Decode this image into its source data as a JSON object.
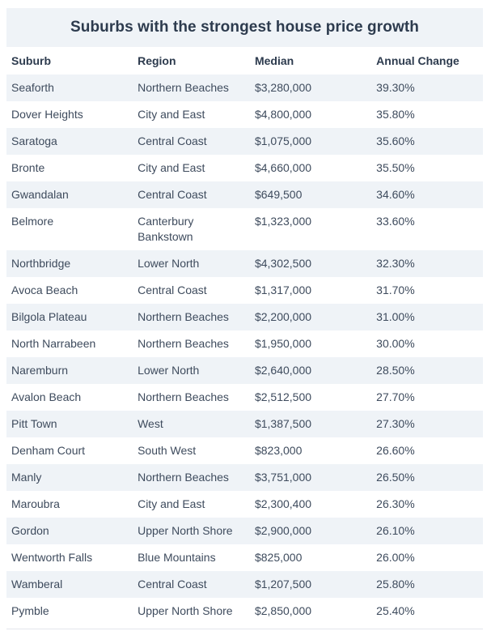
{
  "title": "Suburbs with the strongest house price growth",
  "colors": {
    "stripe_background": "#eff3f7",
    "title_text": "#2d3b4e",
    "header_text": "#2d3b4e",
    "cell_text": "#3e4b5d",
    "bottom_rule": "#e3e6ec",
    "page_background": "#ffffff"
  },
  "chart_data": {
    "type": "table",
    "title": "Suburbs with the strongest house price growth",
    "columns": [
      "Suburb",
      "Region",
      "Median",
      "Annual Change"
    ],
    "rows": [
      [
        "Seaforth",
        "Northern Beaches",
        "$3,280,000",
        "39.30%"
      ],
      [
        "Dover Heights",
        "City and East",
        "$4,800,000",
        "35.80%"
      ],
      [
        "Saratoga",
        "Central Coast",
        "$1,075,000",
        "35.60%"
      ],
      [
        "Bronte",
        "City and East",
        "$4,660,000",
        "35.50%"
      ],
      [
        "Gwandalan",
        "Central Coast",
        "$649,500",
        "34.60%"
      ],
      [
        "Belmore",
        "Canterbury Bankstown",
        "$1,323,000",
        "33.60%"
      ],
      [
        "Northbridge",
        "Lower North",
        "$4,302,500",
        "32.30%"
      ],
      [
        "Avoca Beach",
        "Central Coast",
        "$1,317,000",
        "31.70%"
      ],
      [
        "Bilgola Plateau",
        "Northern Beaches",
        "$2,200,000",
        "31.00%"
      ],
      [
        "North Narrabeen",
        "Northern Beaches",
        "$1,950,000",
        "30.00%"
      ],
      [
        "Naremburn",
        "Lower North",
        "$2,640,000",
        "28.50%"
      ],
      [
        "Avalon Beach",
        "Northern Beaches",
        "$2,512,500",
        "27.70%"
      ],
      [
        "Pitt Town",
        "West",
        "$1,387,500",
        "27.30%"
      ],
      [
        "Denham Court",
        "South West",
        "$823,000",
        "26.60%"
      ],
      [
        "Manly",
        "Northern Beaches",
        "$3,751,000",
        "26.50%"
      ],
      [
        "Maroubra",
        "City and East",
        "$2,300,400",
        "26.30%"
      ],
      [
        "Gordon",
        "Upper North Shore",
        "$2,900,000",
        "26.10%"
      ],
      [
        "Wentworth Falls",
        "Blue Mountains",
        "$825,000",
        "26.00%"
      ],
      [
        "Wamberal",
        "Central Coast",
        "$1,207,500",
        "25.80%"
      ],
      [
        "Pymble",
        "Upper North Shore",
        "$2,850,000",
        "25.40%"
      ]
    ],
    "annual_change_values_pct": [
      39.3,
      35.8,
      35.6,
      35.5,
      34.6,
      33.6,
      32.3,
      31.7,
      31.0,
      30.0,
      28.5,
      27.7,
      27.3,
      26.6,
      26.5,
      26.3,
      26.1,
      26.0,
      25.8,
      25.4
    ],
    "layout_hints": {
      "zebra_striping": "odd rows shaded",
      "cell_vertical_align": "top",
      "all_columns_left_aligned": true
    }
  }
}
